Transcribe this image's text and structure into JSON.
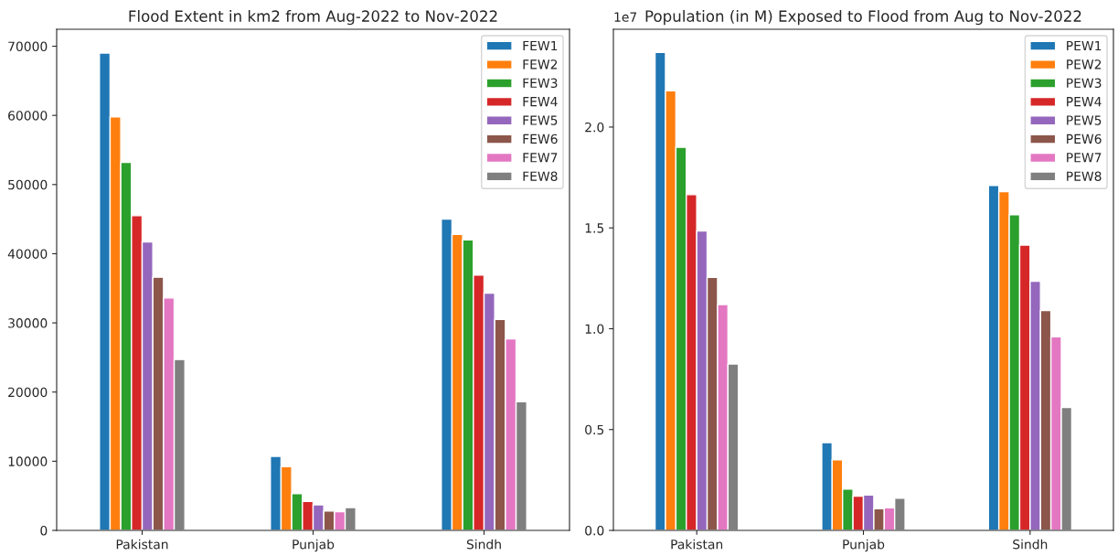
{
  "chart_data": [
    {
      "type": "bar",
      "title": "Flood Extent in km2 from Aug-2022 to Nov-2022",
      "categories": [
        "Pakistan",
        "Punjab",
        "Sindh"
      ],
      "ylim": [
        0,
        72450
      ],
      "yticks": [
        0,
        10000,
        20000,
        30000,
        40000,
        50000,
        60000,
        70000
      ],
      "legend": "top right",
      "grid": false,
      "series": [
        {
          "name": "FEW1",
          "color": "#1f77b4",
          "values": [
            69000,
            10700,
            45000
          ]
        },
        {
          "name": "FEW2",
          "color": "#ff7f0e",
          "values": [
            59800,
            9200,
            42800
          ]
        },
        {
          "name": "FEW3",
          "color": "#2ca02c",
          "values": [
            53200,
            5300,
            42000
          ]
        },
        {
          "name": "FEW4",
          "color": "#d62728",
          "values": [
            45500,
            4200,
            36900
          ]
        },
        {
          "name": "FEW5",
          "color": "#9467bd",
          "values": [
            41700,
            3700,
            34300
          ]
        },
        {
          "name": "FEW6",
          "color": "#8c564b",
          "values": [
            36600,
            2800,
            30500
          ]
        },
        {
          "name": "FEW7",
          "color": "#e377c2",
          "values": [
            33600,
            2700,
            27700
          ]
        },
        {
          "name": "FEW8",
          "color": "#7f7f7f",
          "values": [
            24700,
            3300,
            18600
          ]
        }
      ]
    },
    {
      "type": "bar",
      "title": "Population (in M) Exposed to Flood from Aug to Nov-2022",
      "categories": [
        "Pakistan",
        "Punjab",
        "Sindh"
      ],
      "ylim": [
        0,
        2.485
      ],
      "yticks": [
        {
          "value": 0,
          "label": "0.0"
        },
        0.5,
        {
          "value": 1,
          "label": "1.0"
        },
        1.5,
        {
          "value": 2,
          "label": "2.0"
        }
      ],
      "annotations": [
        "1e7"
      ],
      "legend": "top right",
      "grid": false,
      "series": [
        {
          "name": "PEW1",
          "color": "#1f77b4",
          "values": [
            2.37,
            0.435,
            1.71
          ]
        },
        {
          "name": "PEW2",
          "color": "#ff7f0e",
          "values": [
            2.18,
            0.35,
            1.68
          ]
        },
        {
          "name": "PEW3",
          "color": "#2ca02c",
          "values": [
            1.9,
            0.205,
            1.565
          ]
        },
        {
          "name": "PEW4",
          "color": "#d62728",
          "values": [
            1.665,
            0.17,
            1.415
          ]
        },
        {
          "name": "PEW5",
          "color": "#9467bd",
          "values": [
            1.485,
            0.175,
            1.235
          ]
        },
        {
          "name": "PEW6",
          "color": "#8c564b",
          "values": [
            1.255,
            0.108,
            1.09
          ]
        },
        {
          "name": "PEW7",
          "color": "#e377c2",
          "values": [
            1.12,
            0.112,
            0.96
          ]
        },
        {
          "name": "PEW8",
          "color": "#7f7f7f",
          "values": [
            0.825,
            0.16,
            0.61
          ]
        }
      ]
    }
  ]
}
